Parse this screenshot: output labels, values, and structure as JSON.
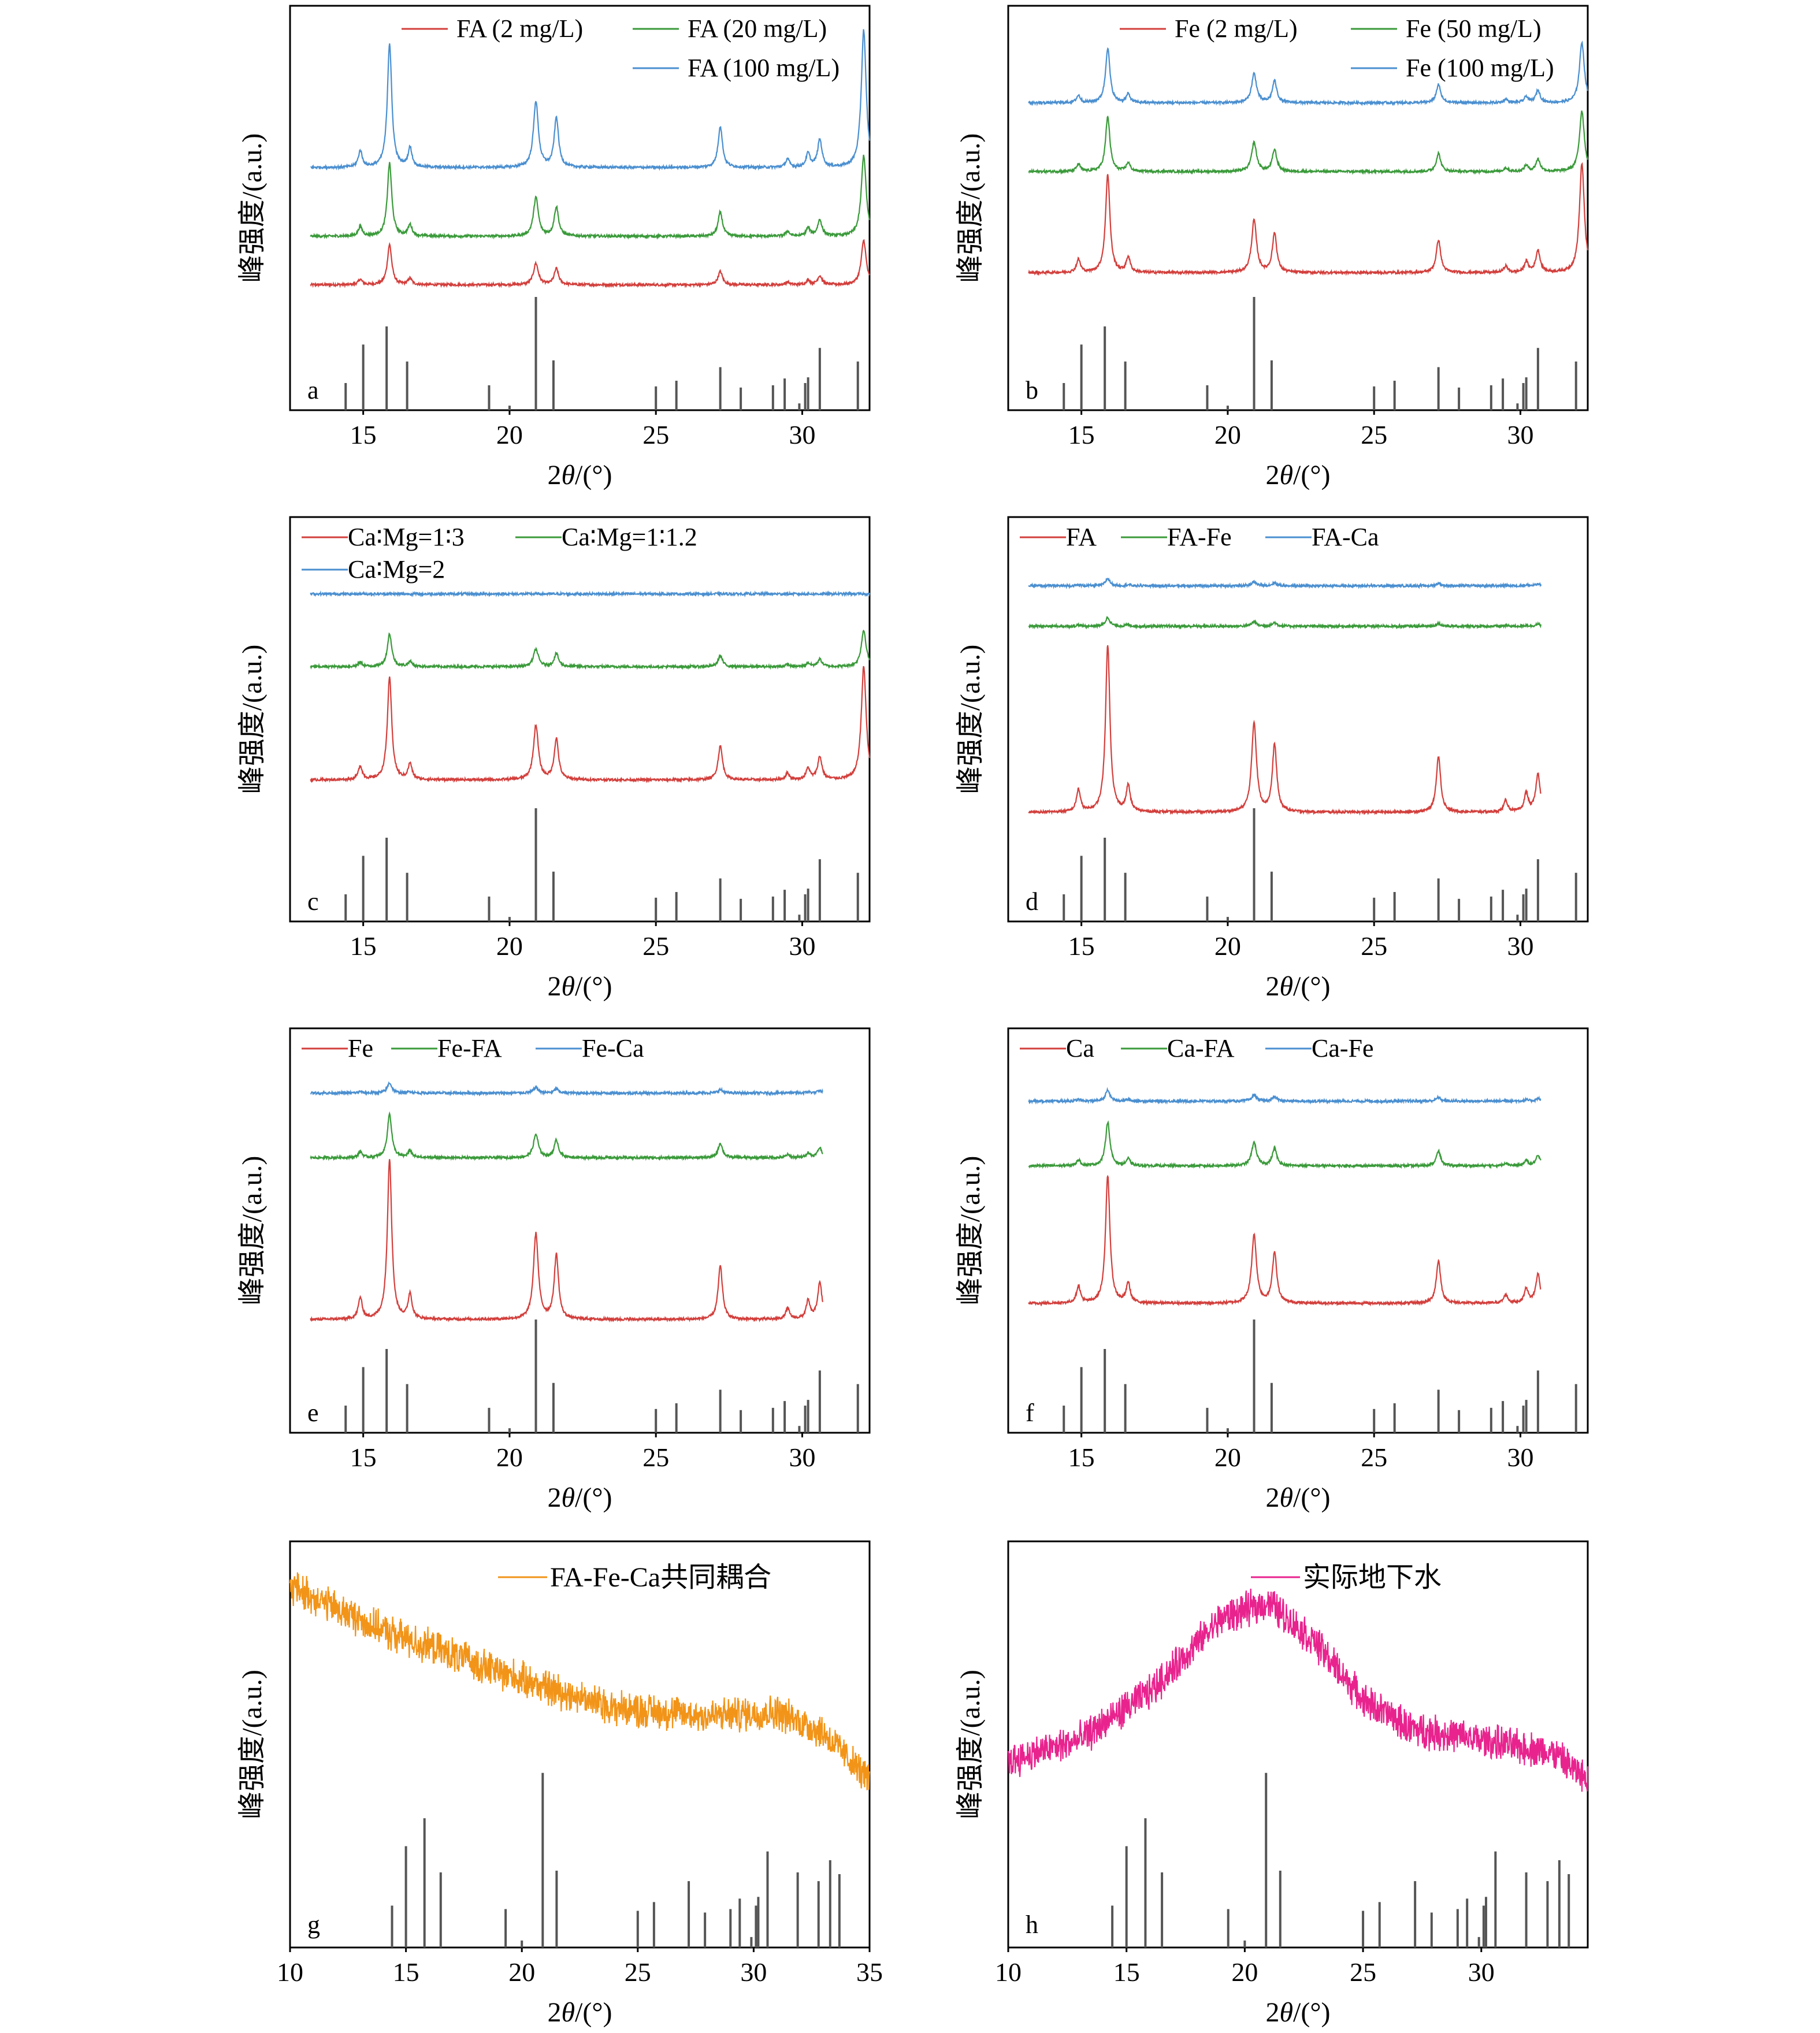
{
  "colors": {
    "red": "#d23f3c",
    "green": "#3a9a3a",
    "blue": "#4a8fd0",
    "orange": "#f29418",
    "pink": "#e8238e",
    "ref": "#555555",
    "axis": "#000000"
  },
  "reference_pattern": {
    "positions": [
      14.4,
      15.0,
      15.8,
      16.5,
      19.3,
      20.0,
      20.9,
      21.5,
      25.0,
      25.7,
      27.2,
      27.9,
      29.0,
      29.4,
      29.9,
      30.1,
      30.2,
      30.6,
      31.9
    ],
    "heights": [
      0.24,
      0.58,
      0.74,
      0.43,
      0.22,
      0.04,
      1.0,
      0.44,
      0.21,
      0.26,
      0.38,
      0.2,
      0.22,
      0.28,
      0.06,
      0.24,
      0.29,
      0.55,
      0.43
    ]
  },
  "chart_data": [
    {
      "id": "a",
      "type": "line",
      "panel_label": "a",
      "xlabel": "2θ/(°)",
      "ylabel": "峰强度/(a.u.)",
      "xlim": [
        12.5,
        32.3
      ],
      "xticks": [
        15,
        20,
        25,
        30
      ],
      "legend_position": "top-right",
      "series": [
        {
          "name": "FA (2 mg/L)",
          "color": "#d23f3c",
          "baseline": 0.31,
          "scale": 0.55
        },
        {
          "name": "FA (20 mg/L)",
          "color": "#3a9a3a",
          "baseline": 0.43,
          "scale": 1.0
        },
        {
          "name": "FA (100 mg/L)",
          "color": "#4a8fd0",
          "baseline": 0.6,
          "scale": 1.7
        }
      ]
    },
    {
      "id": "b",
      "type": "line",
      "panel_label": "b",
      "xlabel": "2θ/(°)",
      "ylabel": "峰强度/(a.u.)",
      "xlim": [
        12.5,
        32.3
      ],
      "xticks": [
        15,
        20,
        25,
        30
      ],
      "legend_position": "top-right",
      "series": [
        {
          "name": "Fe (2 mg/L)",
          "color": "#d23f3c",
          "baseline": 0.34,
          "scale": 1.35
        },
        {
          "name": "Fe (50 mg/L)",
          "color": "#3a9a3a",
          "baseline": 0.59,
          "scale": 0.75
        },
        {
          "name": "Fe (100 mg/L)",
          "color": "#4a8fd0",
          "baseline": 0.76,
          "scale": 0.75
        }
      ]
    },
    {
      "id": "c",
      "type": "line",
      "panel_label": "c",
      "xlabel": "2θ/(°)",
      "ylabel": "峰强度/(a.u.)",
      "xlim": [
        12.5,
        32.3
      ],
      "xticks": [
        15,
        20,
        25,
        30
      ],
      "legend_position": "top-left",
      "series": [
        {
          "name": "Ca∶Mg=1∶3",
          "color": "#d23f3c",
          "baseline": 0.35,
          "scale": 1.4
        },
        {
          "name": "Ca∶Mg=1∶1.2",
          "color": "#3a9a3a",
          "baseline": 0.63,
          "scale": 0.45
        },
        {
          "name": "Ca∶Mg=2",
          "color": "#4a8fd0",
          "baseline": 0.81,
          "scale": 0.0
        }
      ]
    },
    {
      "id": "d",
      "type": "line",
      "panel_label": "d",
      "xlabel": "2θ/(°)",
      "ylabel": "峰强度/(a.u.)",
      "xlim": [
        12.5,
        32.3
      ],
      "xticks": [
        15,
        20,
        25,
        30
      ],
      "legend_position": "top-left",
      "series": [
        {
          "name": "FA",
          "color": "#d23f3c",
          "baseline": 0.27,
          "scale": 2.3,
          "xmax": 30.7
        },
        {
          "name": "FA-Fe",
          "color": "#3a9a3a",
          "baseline": 0.73,
          "scale": 0.12,
          "xmax": 30.7
        },
        {
          "name": "FA-Ca",
          "color": "#4a8fd0",
          "baseline": 0.83,
          "scale": 0.1,
          "xmax": 30.7
        }
      ]
    },
    {
      "id": "e",
      "type": "line",
      "panel_label": "e",
      "xlabel": "2θ/(°)",
      "ylabel": "峰强度/(a.u.)",
      "xlim": [
        12.5,
        32.3
      ],
      "xticks": [
        15,
        20,
        25,
        30
      ],
      "legend_position": "top-left",
      "series": [
        {
          "name": "Fe",
          "color": "#d23f3c",
          "baseline": 0.28,
          "scale": 2.2,
          "xmax": 30.7
        },
        {
          "name": "Fe-FA",
          "color": "#3a9a3a",
          "baseline": 0.68,
          "scale": 0.6,
          "xmax": 30.7
        },
        {
          "name": "Fe-Ca",
          "color": "#4a8fd0",
          "baseline": 0.84,
          "scale": 0.14,
          "xmax": 30.7
        }
      ]
    },
    {
      "id": "f",
      "type": "line",
      "panel_label": "f",
      "xlabel": "2θ/(°)",
      "ylabel": "峰强度/(a.u.)",
      "xlim": [
        12.5,
        32.3
      ],
      "xticks": [
        15,
        20,
        25,
        30
      ],
      "legend_position": "top-left",
      "series": [
        {
          "name": "Ca",
          "color": "#d23f3c",
          "baseline": 0.32,
          "scale": 1.75,
          "xmax": 30.7
        },
        {
          "name": "Ca-FA",
          "color": "#3a9a3a",
          "baseline": 0.66,
          "scale": 0.6,
          "xmax": 30.7
        },
        {
          "name": "Ca-Fe",
          "color": "#4a8fd0",
          "baseline": 0.82,
          "scale": 0.15,
          "xmax": 30.7
        }
      ]
    },
    {
      "id": "g",
      "type": "line",
      "panel_label": "g",
      "xlabel": "2θ/(°)",
      "ylabel": "峰强度/(a.u.)",
      "xlim": [
        10,
        35
      ],
      "xticks": [
        10,
        15,
        20,
        25,
        30,
        35
      ],
      "legend_position": "top-center",
      "series": [
        {
          "name": "FA-Fe-Ca共同耦合",
          "color": "#f29418",
          "shape": "decline",
          "x": [
            10,
            14,
            17,
            20,
            24,
            28,
            31,
            33,
            35
          ],
          "y": [
            0.89,
            0.78,
            0.72,
            0.66,
            0.59,
            0.57,
            0.58,
            0.53,
            0.41
          ]
        }
      ]
    },
    {
      "id": "h",
      "type": "line",
      "panel_label": "h",
      "xlabel": "2θ/(°)",
      "ylabel": "峰强度/(a.u.)",
      "xlim": [
        10,
        34.5
      ],
      "xticks": [
        10,
        15,
        20,
        25,
        30
      ],
      "legend_position": "top-center",
      "series": [
        {
          "name": "实际地下水",
          "color": "#e8238e",
          "shape": "hump",
          "x": [
            10,
            13,
            16,
            19,
            21,
            23,
            25,
            27,
            30,
            33,
            34.5
          ],
          "y": [
            0.46,
            0.51,
            0.63,
            0.81,
            0.85,
            0.75,
            0.61,
            0.54,
            0.51,
            0.48,
            0.41
          ]
        }
      ]
    }
  ]
}
